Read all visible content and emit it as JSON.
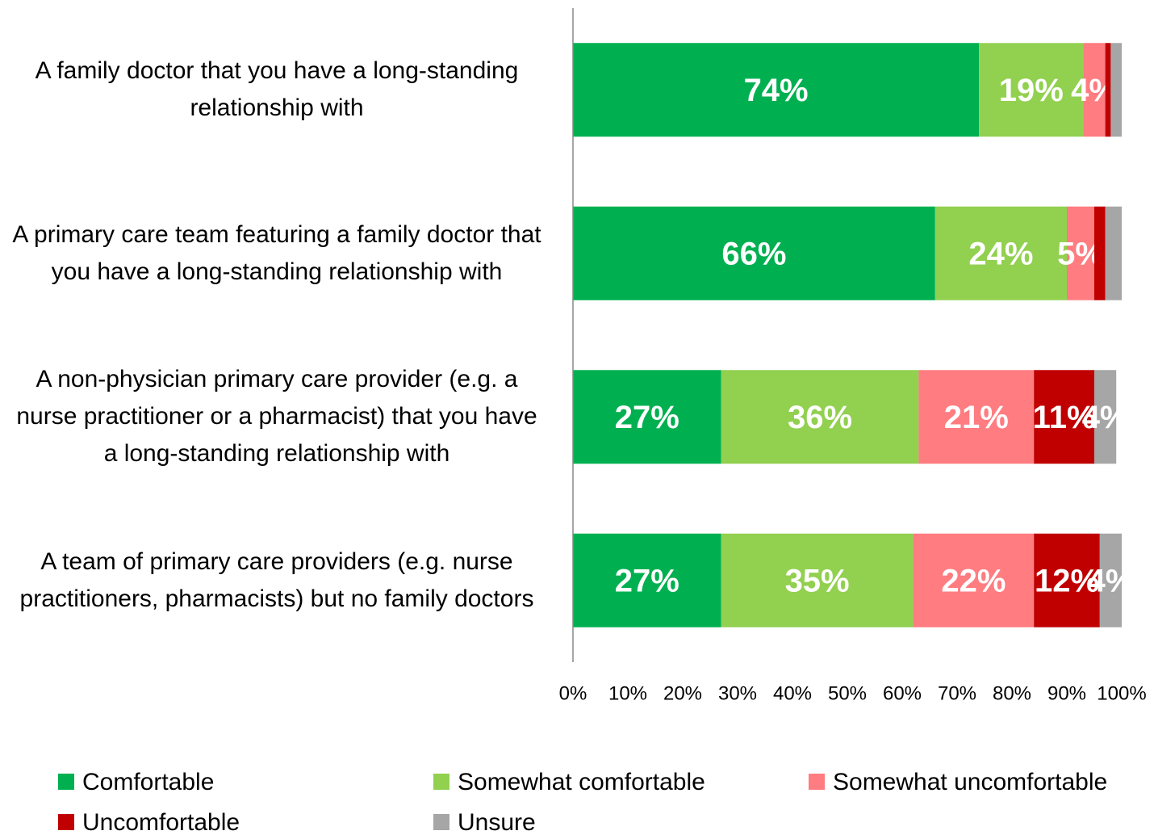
{
  "chart_data": {
    "type": "stacked-barh",
    "categories": [
      "A family doctor that you have a long-standing relationship with",
      "A primary care team featuring a family doctor that you have a long-standing relationship with",
      "A non-physician primary care provider (e.g. a nurse practitioner or a pharmacist) that you have a long-standing relationship with",
      "A team of primary care providers (e.g. nurse practitioners, pharmacists) but no family doctors"
    ],
    "series": [
      {
        "name": "Comfortable",
        "color": "#00b050",
        "values": [
          74,
          66,
          27,
          27
        ],
        "value_labels": [
          "74%",
          "66%",
          "27%",
          "27%"
        ]
      },
      {
        "name": "Somewhat comfortable",
        "color": "#92d050",
        "values": [
          19,
          24,
          36,
          35
        ],
        "value_labels": [
          "19%",
          "24%",
          "36%",
          "35%"
        ]
      },
      {
        "name": "Somewhat uncomfortable",
        "color": "#ff7c80",
        "values": [
          4,
          5,
          21,
          22
        ],
        "value_labels": [
          "4%",
          "5%",
          "21%",
          "22%"
        ]
      },
      {
        "name": "Uncomfortable",
        "color": "#c00000",
        "values": [
          1,
          2,
          11,
          12
        ],
        "value_labels": [
          null,
          null,
          "11%",
          "12%"
        ]
      },
      {
        "name": "Unsure",
        "color": "#a6a6a6",
        "values": [
          2,
          3,
          4,
          4
        ],
        "value_labels": [
          null,
          null,
          "4%",
          "4%"
        ]
      }
    ],
    "xlim": [
      0,
      100
    ],
    "xticks": [
      {
        "value": 0,
        "label": "0%"
      },
      {
        "value": 10,
        "label": "10%"
      },
      {
        "value": 20,
        "label": "20%"
      },
      {
        "value": 30,
        "label": "30%"
      },
      {
        "value": 40,
        "label": "40%"
      },
      {
        "value": 50,
        "label": "50%"
      },
      {
        "value": 60,
        "label": "60%"
      },
      {
        "value": 70,
        "label": "70%"
      },
      {
        "value": 80,
        "label": "80%"
      },
      {
        "value": 90,
        "label": "90%"
      },
      {
        "value": 100,
        "label": "100%"
      }
    ],
    "grid": false,
    "legend": "bottom"
  }
}
